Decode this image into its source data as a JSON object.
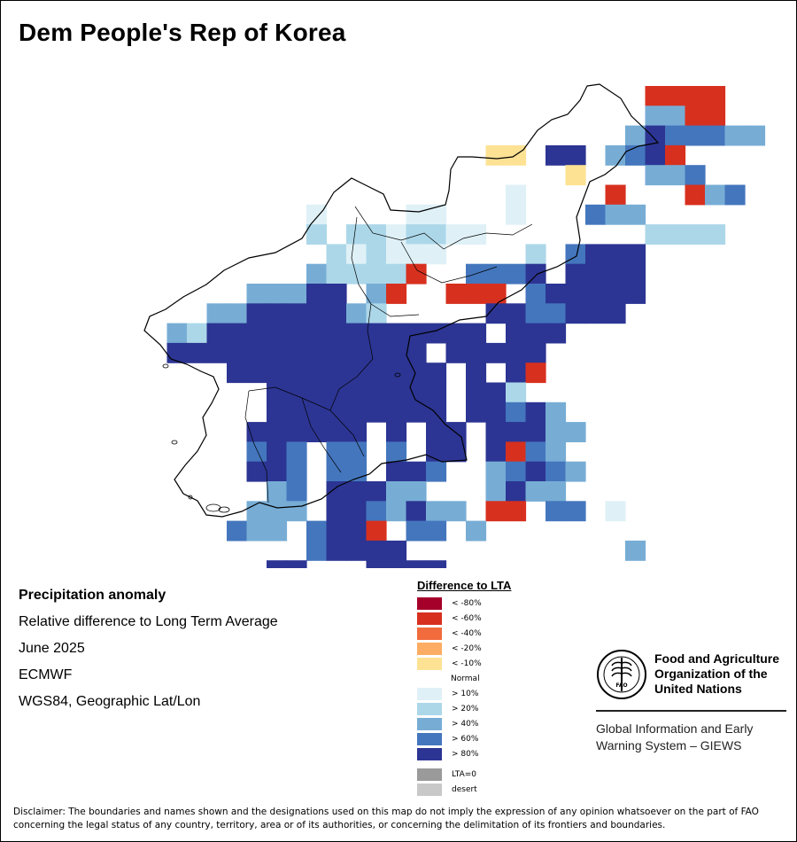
{
  "title": "Dem People's Rep of Korea",
  "info": {
    "heading": "Precipitation anomaly",
    "subtitle": "Relative difference to Long Term Average",
    "period": "June 2025",
    "source": "ECMWF",
    "projection": "WGS84, Geographic Lat/Lon"
  },
  "legend": {
    "title": "Difference to LTA",
    "items": [
      {
        "label": "< -80%",
        "color": "#a5002a"
      },
      {
        "label": "< -60%",
        "color": "#d7301f"
      },
      {
        "label": "< -40%",
        "color": "#f16b3c"
      },
      {
        "label": "< -20%",
        "color": "#fdad63"
      },
      {
        "label": "< -10%",
        "color": "#fee294"
      },
      {
        "label": "Normal",
        "color": "#ffffff"
      },
      {
        "label": "> 10%",
        "color": "#dff1f7"
      },
      {
        "label": "> 20%",
        "color": "#acd7e9"
      },
      {
        "label": "> 40%",
        "color": "#77add5"
      },
      {
        "label": "> 60%",
        "color": "#4476bd"
      },
      {
        "label": "> 80%",
        "color": "#2c3593"
      }
    ],
    "extra": [
      {
        "label": "LTA=0",
        "color": "#9a9a9a"
      },
      {
        "label": "desert",
        "color": "#c8c8c8"
      }
    ]
  },
  "org": {
    "name_lines": [
      "Food and Agriculture",
      "Organization of the",
      "United Nations"
    ],
    "logo_text": "FIAT PANIS",
    "system_lines": [
      "Global Information and Early",
      "Warning System – GIEWS"
    ]
  },
  "disclaimer": "Disclaimer: The boundaries and names shown and the designations used on this map do not imply the expression of any opinion whatsoever on the part of FAO concerning the legal status of any country, territory, area or of its authorities, or concerning the delimitation of its frontiers and boundaries.",
  "map_grid": [
    ".........................0000.......",
    ".........................7700......",
    "........................7988877.....",
    ".................33.99.7890..........",
    ".........4...........34..778.......",
    ".........44..4....5....0...078......",
    "........5...45544.5...877...........",
    "........6.6656655........6666.......",
    ".........656555....6.8999...........",
    "........766660..8889.9999...........",
    ".....77799.70..000.899999...........",
    "...779999976.....9988999............",
    ".7699999999999999.999...............",
    ".9999999999999.99999................",
    "....99999999999.9.90................",
    "......999999999.996.................",
    "......999999999.99897...............",
    ".....999999.9.99.99977..............",
    ".....898.88.8.99.9087...............",
    ".....998.88.998..78987..............",
    "......78.99977...7977...............",
    ".....777.9987977.00.88.5............",
    "....877.8990.88.7...................",
    "........89999...........7...........",
    "......99...9999.....................",
    ".....9......9......................."
  ]
}
